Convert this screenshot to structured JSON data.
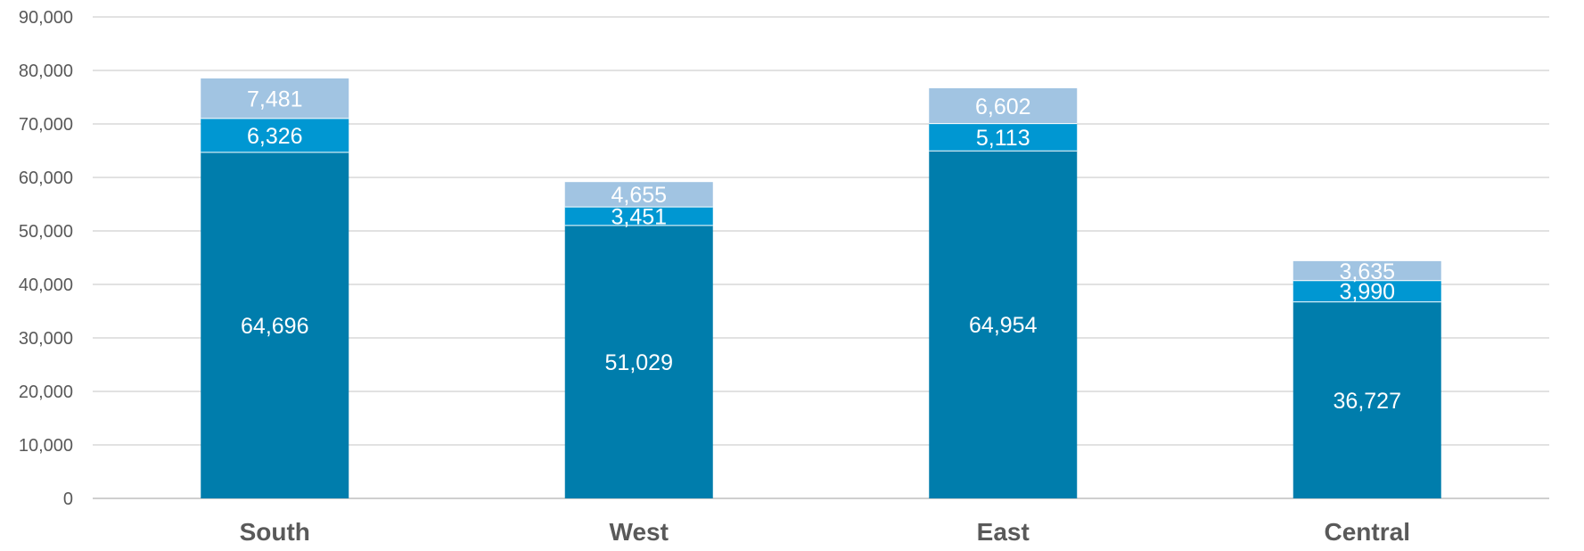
{
  "chart_data": {
    "type": "bar",
    "stacked": true,
    "categories": [
      "South",
      "West",
      "East",
      "Central"
    ],
    "series": [
      {
        "values": [
          64696,
          51029,
          64954,
          36727
        ],
        "color": "#007dac"
      },
      {
        "values": [
          6326,
          3451,
          5113,
          3990
        ],
        "color": "#0097d2"
      },
      {
        "values": [
          7481,
          4655,
          6602,
          3635
        ],
        "color": "#a1c4e2"
      }
    ],
    "data_labels": [
      [
        "64,696",
        "51,029",
        "64,954",
        "36,727"
      ],
      [
        "6,326",
        "3,451",
        "5,113",
        "3,990"
      ],
      [
        "7,481",
        "4,655",
        "6,602",
        "3,635"
      ]
    ],
    "y_ticks": [
      "0",
      "10,000",
      "20,000",
      "30,000",
      "40,000",
      "50,000",
      "60,000",
      "70,000",
      "80,000",
      "90,000"
    ],
    "ylim": [
      0,
      90000
    ],
    "grid": true,
    "legend": "none",
    "title": "",
    "xlabel": "",
    "ylabel": ""
  }
}
